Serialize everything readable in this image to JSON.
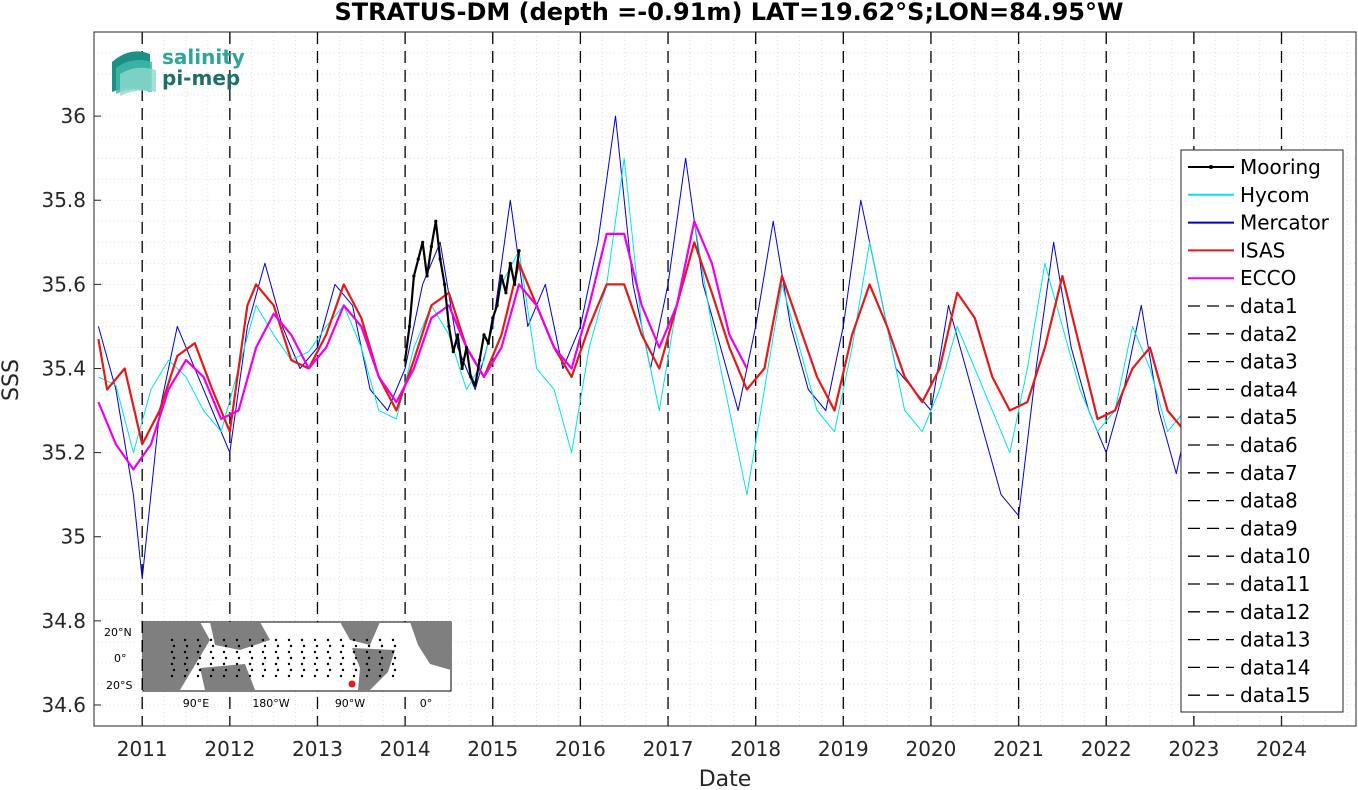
{
  "chart_data": {
    "type": "line",
    "title": "STRATUS-DM (depth =-0.91m) LAT=19.62°S;LON=84.95°W",
    "xlabel": "Date",
    "ylabel": "SSS",
    "xlim": [
      2010.45,
      2024.85
    ],
    "ylim": [
      34.55,
      36.2
    ],
    "x_ticks": [
      2011,
      2012,
      2013,
      2014,
      2015,
      2016,
      2017,
      2018,
      2019,
      2020,
      2021,
      2022,
      2023,
      2024
    ],
    "x_tick_labels": [
      "2011",
      "2012",
      "2013",
      "2014",
      "2015",
      "2016",
      "2017",
      "2018",
      "2019",
      "2020",
      "2021",
      "2022",
      "2023",
      "2024"
    ],
    "y_ticks": [
      34.6,
      34.8,
      35,
      35.2,
      35.4,
      35.6,
      35.8,
      36
    ],
    "y_tick_labels": [
      "34.6",
      "34.8",
      "35",
      "35.2",
      "35.4",
      "35.6",
      "35.8",
      "36"
    ],
    "grid": true,
    "legend_position": "right",
    "vertical_dashed_lines_at": [
      2011,
      2012,
      2013,
      2014,
      2015,
      2016,
      2017,
      2018,
      2019,
      2020,
      2021,
      2022,
      2023,
      2024
    ],
    "series": [
      {
        "name": "Mooring",
        "color": "#000000",
        "style": "solid-dots",
        "x": [
          2014.0,
          2014.05,
          2014.1,
          2014.15,
          2014.2,
          2014.25,
          2014.3,
          2014.35,
          2014.4,
          2014.45,
          2014.5,
          2014.55,
          2014.6,
          2014.65,
          2014.7,
          2014.75,
          2014.8,
          2014.85,
          2014.9,
          2014.95,
          2015.0,
          2015.05,
          2015.1,
          2015.15,
          2015.2,
          2015.25,
          2015.3
        ],
        "y": [
          35.42,
          35.5,
          35.62,
          35.66,
          35.7,
          35.62,
          35.69,
          35.75,
          35.66,
          35.6,
          35.5,
          35.44,
          35.48,
          35.4,
          35.45,
          35.38,
          35.36,
          35.42,
          35.48,
          35.46,
          35.52,
          35.55,
          35.62,
          35.58,
          35.65,
          35.6,
          35.68
        ]
      },
      {
        "name": "Hycom",
        "color": "#00e5e5",
        "style": "solid",
        "x": [
          2010.5,
          2010.7,
          2010.9,
          2011.1,
          2011.3,
          2011.5,
          2011.7,
          2011.9,
          2012.1,
          2012.3,
          2012.5,
          2012.7,
          2012.9,
          2013.1,
          2013.3,
          2013.5,
          2013.7,
          2013.9,
          2014.1,
          2014.3,
          2014.5,
          2014.7,
          2014.9,
          2015.1,
          2015.3,
          2015.5,
          2015.7,
          2015.9,
          2016.1,
          2016.3,
          2016.5,
          2016.7,
          2016.9,
          2017.1,
          2017.3,
          2017.5,
          2017.7,
          2017.9,
          2018.1,
          2018.3,
          2018.5,
          2018.7,
          2018.9,
          2019.1,
          2019.3,
          2019.5,
          2019.7,
          2019.9,
          2020.1,
          2020.3,
          2020.5,
          2020.7,
          2020.9,
          2021.1,
          2021.3,
          2021.5,
          2021.7,
          2021.9,
          2022.1,
          2022.3,
          2022.5,
          2022.7,
          2022.9
        ],
        "y": [
          35.38,
          35.36,
          35.2,
          35.35,
          35.42,
          35.38,
          35.3,
          35.25,
          35.4,
          35.55,
          35.48,
          35.42,
          35.44,
          35.5,
          35.55,
          35.45,
          35.3,
          35.28,
          35.45,
          35.55,
          35.48,
          35.35,
          35.42,
          35.6,
          35.68,
          35.4,
          35.35,
          35.2,
          35.45,
          35.6,
          35.9,
          35.5,
          35.3,
          35.55,
          35.75,
          35.5,
          35.3,
          35.1,
          35.35,
          35.6,
          35.45,
          35.3,
          35.25,
          35.45,
          35.7,
          35.5,
          35.3,
          35.25,
          35.35,
          35.5,
          35.4,
          35.3,
          35.2,
          35.4,
          35.65,
          35.5,
          35.35,
          35.25,
          35.3,
          35.5,
          35.4,
          35.25,
          35.3
        ]
      },
      {
        "name": "Mercator",
        "color": "#0000cc",
        "style": "solid",
        "x": [
          2010.5,
          2010.7,
          2010.9,
          2011.0,
          2011.2,
          2011.4,
          2011.6,
          2011.8,
          2012.0,
          2012.2,
          2012.4,
          2012.6,
          2012.8,
          2013.0,
          2013.2,
          2013.4,
          2013.6,
          2013.8,
          2014.0,
          2014.2,
          2014.4,
          2014.6,
          2014.8,
          2015.0,
          2015.2,
          2015.4,
          2015.6,
          2015.8,
          2016.0,
          2016.2,
          2016.4,
          2016.6,
          2016.8,
          2017.0,
          2017.2,
          2017.4,
          2017.6,
          2017.8,
          2018.0,
          2018.2,
          2018.4,
          2018.6,
          2018.8,
          2019.0,
          2019.2,
          2019.4,
          2019.6,
          2019.8,
          2020.0,
          2020.2,
          2020.4,
          2020.6,
          2020.8,
          2021.0,
          2021.2,
          2021.4,
          2021.6,
          2021.8,
          2022.0,
          2022.2,
          2022.4,
          2022.6,
          2022.8,
          2023.0
        ],
        "y": [
          35.5,
          35.35,
          35.1,
          34.9,
          35.3,
          35.5,
          35.4,
          35.3,
          35.2,
          35.5,
          35.65,
          35.5,
          35.4,
          35.45,
          35.6,
          35.55,
          35.35,
          35.3,
          35.4,
          35.6,
          35.7,
          35.45,
          35.35,
          35.5,
          35.8,
          35.5,
          35.6,
          35.4,
          35.5,
          35.7,
          36.0,
          35.6,
          35.4,
          35.6,
          35.9,
          35.6,
          35.45,
          35.3,
          35.5,
          35.75,
          35.5,
          35.35,
          35.3,
          35.5,
          35.8,
          35.6,
          35.4,
          35.35,
          35.3,
          35.55,
          35.4,
          35.25,
          35.1,
          35.05,
          35.4,
          35.7,
          35.45,
          35.3,
          35.2,
          35.35,
          35.55,
          35.3,
          35.15,
          35.35
        ]
      },
      {
        "name": "ISAS",
        "color": "#e41a1a",
        "style": "solid",
        "x": [
          2010.5,
          2010.6,
          2010.8,
          2011.0,
          2011.2,
          2011.4,
          2011.6,
          2011.8,
          2012.0,
          2012.2,
          2012.3,
          2012.5,
          2012.7,
          2012.9,
          2013.1,
          2013.3,
          2013.5,
          2013.7,
          2013.9,
          2014.1,
          2014.3,
          2014.5,
          2014.7,
          2014.9,
          2015.1,
          2015.3,
          2015.5,
          2015.7,
          2015.9,
          2016.1,
          2016.3,
          2016.5,
          2016.7,
          2016.9,
          2017.1,
          2017.3,
          2017.5,
          2017.7,
          2017.9,
          2018.1,
          2018.3,
          2018.5,
          2018.7,
          2018.9,
          2019.1,
          2019.3,
          2019.5,
          2019.7,
          2019.9,
          2020.1,
          2020.3,
          2020.5,
          2020.7,
          2020.9,
          2021.1,
          2021.3,
          2021.5,
          2021.7,
          2021.9,
          2022.1,
          2022.3,
          2022.5,
          2022.7,
          2022.9
        ],
        "y": [
          35.47,
          35.35,
          35.4,
          35.22,
          35.3,
          35.43,
          35.46,
          35.35,
          35.25,
          35.55,
          35.6,
          35.55,
          35.42,
          35.4,
          35.48,
          35.6,
          35.52,
          35.38,
          35.3,
          35.42,
          35.55,
          35.58,
          35.45,
          35.38,
          35.48,
          35.65,
          35.55,
          35.45,
          35.38,
          35.5,
          35.6,
          35.6,
          35.48,
          35.4,
          35.55,
          35.7,
          35.58,
          35.45,
          35.35,
          35.4,
          35.62,
          35.5,
          35.38,
          35.3,
          35.48,
          35.6,
          35.5,
          35.38,
          35.32,
          35.4,
          35.58,
          35.52,
          35.38,
          35.3,
          35.32,
          35.45,
          35.62,
          35.45,
          35.28,
          35.3,
          35.4,
          35.45,
          35.3,
          35.25
        ]
      },
      {
        "name": "ECCO",
        "color": "#ee00ee",
        "style": "solid",
        "x": [
          2010.5,
          2010.7,
          2010.9,
          2011.1,
          2011.3,
          2011.5,
          2011.7,
          2011.9,
          2012.1,
          2012.3,
          2012.5,
          2012.7,
          2012.9,
          2013.1,
          2013.3,
          2013.5,
          2013.7,
          2013.9,
          2014.1,
          2014.3,
          2014.5,
          2014.7,
          2014.9,
          2015.1,
          2015.3,
          2015.5,
          2015.7,
          2015.9,
          2016.1,
          2016.3,
          2016.5,
          2016.7,
          2016.9,
          2017.1,
          2017.3,
          2017.5,
          2017.7,
          2017.9
        ],
        "y": [
          35.32,
          35.22,
          35.16,
          35.22,
          35.35,
          35.42,
          35.38,
          35.28,
          35.3,
          35.45,
          35.53,
          35.48,
          35.4,
          35.45,
          35.55,
          35.5,
          35.38,
          35.32,
          35.4,
          35.52,
          35.55,
          35.45,
          35.38,
          35.45,
          35.6,
          35.55,
          35.45,
          35.4,
          35.55,
          35.72,
          35.72,
          35.55,
          35.45,
          35.55,
          35.75,
          35.65,
          35.48,
          35.4
        ]
      },
      {
        "name": "data1",
        "color": "#000000",
        "style": "dashed"
      },
      {
        "name": "data2",
        "color": "#000000",
        "style": "dashed"
      },
      {
        "name": "data3",
        "color": "#000000",
        "style": "dashed"
      },
      {
        "name": "data4",
        "color": "#000000",
        "style": "dashed"
      },
      {
        "name": "data5",
        "color": "#000000",
        "style": "dashed"
      },
      {
        "name": "data6",
        "color": "#000000",
        "style": "dashed"
      },
      {
        "name": "data7",
        "color": "#000000",
        "style": "dashed"
      },
      {
        "name": "data8",
        "color": "#000000",
        "style": "dashed"
      },
      {
        "name": "data9",
        "color": "#000000",
        "style": "dashed"
      },
      {
        "name": "data10",
        "color": "#000000",
        "style": "dashed"
      },
      {
        "name": "data11",
        "color": "#000000",
        "style": "dashed"
      },
      {
        "name": "data12",
        "color": "#000000",
        "style": "dashed"
      },
      {
        "name": "data13",
        "color": "#000000",
        "style": "dashed"
      },
      {
        "name": "data14",
        "color": "#000000",
        "style": "dashed"
      },
      {
        "name": "data15",
        "color": "#000000",
        "style": "dashed"
      }
    ]
  },
  "logo": {
    "line1": "salinity",
    "line2": "pi-mep"
  },
  "inset_map": {
    "lat_labels": [
      "20°N",
      "0°",
      "20°S"
    ],
    "lon_labels": [
      "90°E",
      "180°W",
      "90°W",
      "0°"
    ],
    "marker_color": "#e41a1a"
  }
}
